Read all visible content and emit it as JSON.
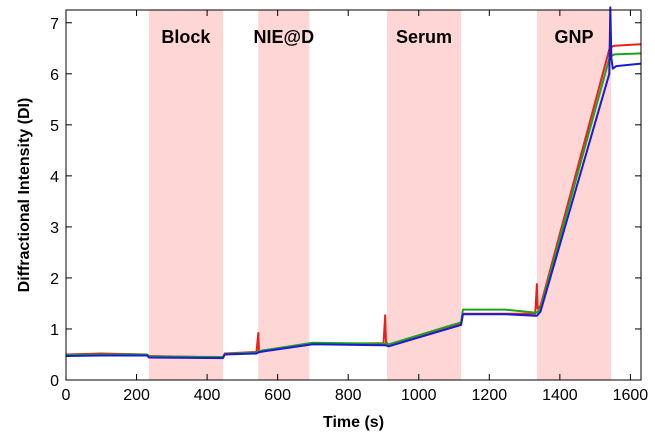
{
  "chart_data": {
    "type": "line",
    "xlabel": "Time (s)",
    "ylabel": "Diffractional Intensity (DI)",
    "xlim": [
      0,
      1630
    ],
    "ylim": [
      0,
      7.25
    ],
    "xticks": [
      0,
      200,
      400,
      600,
      800,
      1000,
      1200,
      1400,
      1600
    ],
    "yticks": [
      0,
      1,
      2,
      3,
      4,
      5,
      6,
      7
    ],
    "grid": false,
    "band_color": "#ffd6d6",
    "bands": [
      {
        "label": "Block",
        "x0": 235,
        "x1": 445
      },
      {
        "label": "NIE@D",
        "x0": 545,
        "x1": 690
      },
      {
        "label": "Serum",
        "x0": 910,
        "x1": 1120
      },
      {
        "label": "GNP",
        "x0": 1335,
        "x1": 1545
      }
    ],
    "series": [
      {
        "color": "#e8221b",
        "x": [
          0,
          100,
          230,
          235,
          445,
          450,
          540,
          545,
          547,
          560,
          690,
          700,
          900,
          905,
          907,
          915,
          1120,
          1125,
          1240,
          1245,
          1330,
          1335,
          1337,
          1345,
          1540,
          1545,
          1547,
          1555,
          1630
        ],
        "y": [
          0.5,
          0.52,
          0.5,
          0.47,
          0.44,
          0.52,
          0.55,
          0.92,
          0.56,
          0.58,
          0.7,
          0.71,
          0.72,
          1.27,
          0.75,
          0.67,
          1.1,
          1.3,
          1.3,
          1.3,
          1.3,
          1.88,
          1.4,
          1.45,
          6.48,
          6.5,
          6.53,
          6.55,
          6.58
        ]
      },
      {
        "color": "#1fa31f",
        "x": [
          0,
          100,
          230,
          235,
          445,
          450,
          540,
          545,
          560,
          690,
          700,
          900,
          905,
          915,
          1120,
          1125,
          1240,
          1245,
          1330,
          1335,
          1345,
          1540,
          1545,
          1555,
          1630
        ],
        "y": [
          0.49,
          0.5,
          0.5,
          0.46,
          0.45,
          0.51,
          0.54,
          0.56,
          0.58,
          0.72,
          0.73,
          0.71,
          0.71,
          0.7,
          1.13,
          1.38,
          1.38,
          1.38,
          1.32,
          1.32,
          1.4,
          6.3,
          6.35,
          6.38,
          6.4
        ]
      },
      {
        "color": "#1a1ad8",
        "x": [
          0,
          100,
          230,
          235,
          445,
          450,
          540,
          545,
          560,
          690,
          700,
          900,
          905,
          915,
          1120,
          1125,
          1240,
          1245,
          1330,
          1335,
          1345,
          1540,
          1543,
          1546,
          1550,
          1560,
          1630
        ],
        "y": [
          0.47,
          0.48,
          0.48,
          0.44,
          0.43,
          0.5,
          0.52,
          0.54,
          0.56,
          0.69,
          0.7,
          0.68,
          0.68,
          0.66,
          1.08,
          1.29,
          1.29,
          1.29,
          1.26,
          1.26,
          1.34,
          6.0,
          7.3,
          6.3,
          6.1,
          6.15,
          6.2
        ]
      }
    ]
  }
}
